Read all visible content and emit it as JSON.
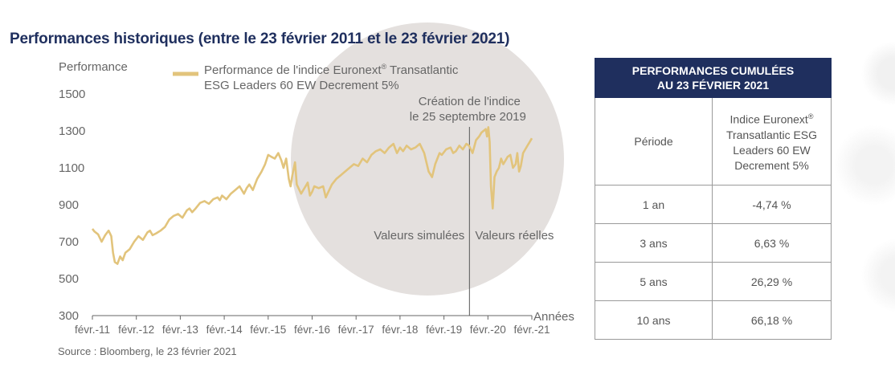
{
  "title": "Performances historiques (entre le 23 février 2011 et le 23 février 2021)",
  "source": "Source : Bloomberg, le 23 février 2021",
  "colors": {
    "navy": "#1f2f5e",
    "line": "#e2c47c",
    "circle": "#e4e0de"
  },
  "chart_data": {
    "type": "line",
    "ylabel": "Performance",
    "xlabel": "Années",
    "ylim": [
      300,
      1500
    ],
    "yticks": [
      300,
      500,
      700,
      900,
      1100,
      1300,
      1500
    ],
    "xlim": [
      2011.15,
      2021.15
    ],
    "xticks": [
      {
        "value": 2011.15,
        "label": "févr.-11"
      },
      {
        "value": 2012.15,
        "label": "févr.-12"
      },
      {
        "value": 2013.15,
        "label": "févr.-13"
      },
      {
        "value": 2014.15,
        "label": "févr.-14"
      },
      {
        "value": 2015.15,
        "label": "févr.-15"
      },
      {
        "value": 2016.15,
        "label": "févr.-16"
      },
      {
        "value": 2017.15,
        "label": "févr.-17"
      },
      {
        "value": 2018.15,
        "label": "févr.-18"
      },
      {
        "value": 2019.15,
        "label": "févr.-19"
      },
      {
        "value": 2020.15,
        "label": "févr.-20"
      },
      {
        "value": 2021.15,
        "label": "févr.-21"
      }
    ],
    "grid": false,
    "legend": {
      "position": "top",
      "entry": [
        "Performance de l'indice Euronext",
        "®",
        " Transatlantic",
        "ESG Leaders 60 EW Decrement 5%"
      ]
    },
    "annotations": {
      "creation": {
        "x": 2019.73,
        "lines": [
          "Création de l'indice",
          "le 25 septembre 2019"
        ]
      },
      "simulated": "Valeurs simulées",
      "real": "Valeurs réelles"
    },
    "series": [
      {
        "name": "Performance de l'indice Euronext® Transatlantic ESG Leaders 60 EW Decrement 5%",
        "x": [
          2011.15,
          2011.2,
          2011.28,
          2011.36,
          2011.44,
          2011.52,
          2011.58,
          2011.62,
          2011.66,
          2011.72,
          2011.78,
          2011.84,
          2011.9,
          2012.0,
          2012.1,
          2012.2,
          2012.3,
          2012.4,
          2012.46,
          2012.52,
          2012.6,
          2012.7,
          2012.8,
          2012.9,
          2013.0,
          2013.1,
          2013.2,
          2013.3,
          2013.36,
          2013.42,
          2013.5,
          2013.6,
          2013.7,
          2013.8,
          2013.9,
          2014.0,
          2014.05,
          2014.1,
          2014.2,
          2014.3,
          2014.4,
          2014.5,
          2014.6,
          2014.66,
          2014.72,
          2014.8,
          2014.9,
          2015.0,
          2015.08,
          2015.15,
          2015.22,
          2015.3,
          2015.38,
          2015.45,
          2015.5,
          2015.56,
          2015.62,
          2015.66,
          2015.7,
          2015.76,
          2015.8,
          2015.9,
          2016.0,
          2016.05,
          2016.1,
          2016.15,
          2016.2,
          2016.3,
          2016.4,
          2016.46,
          2016.52,
          2016.6,
          2016.7,
          2016.8,
          2016.9,
          2017.0,
          2017.1,
          2017.2,
          2017.3,
          2017.4,
          2017.5,
          2017.6,
          2017.7,
          2017.8,
          2017.9,
          2018.0,
          2018.08,
          2018.15,
          2018.22,
          2018.3,
          2018.4,
          2018.5,
          2018.6,
          2018.7,
          2018.8,
          2018.88,
          2018.95,
          2019.0,
          2019.05,
          2019.1,
          2019.2,
          2019.3,
          2019.36,
          2019.42,
          2019.5,
          2019.58,
          2019.66,
          2019.72,
          2019.8,
          2019.88,
          2019.95,
          2020.0,
          2020.05,
          2020.1,
          2020.13,
          2020.16,
          2020.19,
          2020.22,
          2020.26,
          2020.3,
          2020.35,
          2020.4,
          2020.45,
          2020.5,
          2020.55,
          2020.6,
          2020.66,
          2020.72,
          2020.78,
          2020.82,
          2020.86,
          2020.9,
          2020.95,
          2021.0,
          2021.05,
          2021.1,
          2021.15
        ],
        "values": [
          770,
          755,
          740,
          700,
          735,
          760,
          730,
          640,
          590,
          580,
          620,
          600,
          640,
          660,
          700,
          730,
          710,
          750,
          760,
          735,
          745,
          760,
          780,
          820,
          840,
          850,
          830,
          870,
          880,
          860,
          880,
          910,
          920,
          905,
          930,
          940,
          925,
          950,
          930,
          960,
          980,
          1000,
          960,
          990,
          1010,
          980,
          1040,
          1080,
          1120,
          1170,
          1160,
          1150,
          1180,
          1140,
          1100,
          1150,
          1040,
          1000,
          1060,
          1130,
          1010,
          960,
          1000,
          1020,
          950,
          970,
          1000,
          990,
          1000,
          940,
          970,
          1010,
          1040,
          1060,
          1080,
          1100,
          1120,
          1110,
          1150,
          1130,
          1170,
          1190,
          1200,
          1180,
          1210,
          1230,
          1180,
          1210,
          1190,
          1220,
          1200,
          1210,
          1230,
          1180,
          1080,
          1050,
          1120,
          1150,
          1180,
          1170,
          1200,
          1210,
          1180,
          1190,
          1220,
          1200,
          1230,
          1220,
          1180,
          1250,
          1270,
          1290,
          1300,
          1310,
          1270,
          1320,
          1240,
          1000,
          880,
          1050,
          1080,
          1100,
          1150,
          1120,
          1140,
          1160,
          1170,
          1100,
          1120,
          1180,
          1080,
          1110,
          1180,
          1200,
          1220,
          1240,
          1260
        ]
      }
    ]
  },
  "table": {
    "header_lines": [
      "PERFORMANCES CUMULÉES",
      "AU 23 FÉVRIER 2021"
    ],
    "col_period": "Période",
    "col_index_lines": [
      "Indice Euronext",
      "Transatlantic ESG",
      "Leaders 60 EW",
      "Decrement 5%"
    ],
    "col_index_sup": "®",
    "rows": [
      {
        "period": "1 an",
        "value": "-4,74 %"
      },
      {
        "period": "3 ans",
        "value": "6,63 %"
      },
      {
        "period": "5 ans",
        "value": "26,29 %"
      },
      {
        "period": "10 ans",
        "value": "66,18 %"
      }
    ]
  }
}
